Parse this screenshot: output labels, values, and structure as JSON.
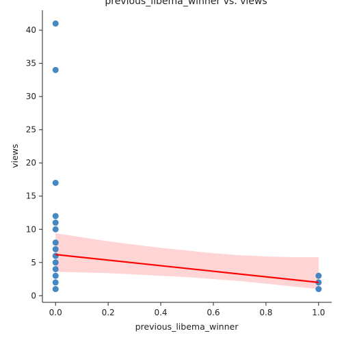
{
  "chart_data": {
    "type": "scatter",
    "title": "previous_libema_winner vs. views",
    "xlabel": "previous_libema_winner",
    "ylabel": "views",
    "xlim": [
      -0.05,
      1.05
    ],
    "ylim": [
      -1,
      43
    ],
    "x_ticks": [
      0.0,
      0.2,
      0.4,
      0.6,
      0.8,
      1.0
    ],
    "x_tick_labels": [
      "0.0",
      "0.2",
      "0.4",
      "0.6",
      "0.8",
      "1.0"
    ],
    "y_ticks": [
      0,
      5,
      10,
      15,
      20,
      25,
      30,
      35,
      40
    ],
    "y_tick_labels": [
      "0",
      "5",
      "10",
      "15",
      "20",
      "25",
      "30",
      "35",
      "40"
    ],
    "grid": false,
    "points": [
      {
        "x": 0,
        "y": 41
      },
      {
        "x": 0,
        "y": 34
      },
      {
        "x": 0,
        "y": 17
      },
      {
        "x": 0,
        "y": 12
      },
      {
        "x": 0,
        "y": 11
      },
      {
        "x": 0,
        "y": 10
      },
      {
        "x": 0,
        "y": 8
      },
      {
        "x": 0,
        "y": 7
      },
      {
        "x": 0,
        "y": 6
      },
      {
        "x": 0,
        "y": 5
      },
      {
        "x": 0,
        "y": 4
      },
      {
        "x": 0,
        "y": 3
      },
      {
        "x": 0,
        "y": 2
      },
      {
        "x": 0,
        "y": 1
      },
      {
        "x": 1,
        "y": 3
      },
      {
        "x": 1,
        "y": 2
      },
      {
        "x": 1,
        "y": 1
      }
    ],
    "regression": {
      "x": [
        0,
        1
      ],
      "y": [
        6.2,
        2.0
      ]
    },
    "confidence_band": {
      "x": [
        0,
        0.1,
        0.2,
        0.3,
        0.4,
        0.5,
        0.6,
        0.7,
        0.8,
        0.9,
        1.0
      ],
      "lower": [
        3.6,
        3.5,
        3.4,
        3.2,
        3.0,
        2.8,
        2.5,
        2.2,
        1.8,
        1.4,
        1.0
      ],
      "upper": [
        9.4,
        8.8,
        8.2,
        7.7,
        7.2,
        6.8,
        6.4,
        6.1,
        5.9,
        5.8,
        5.8
      ]
    },
    "colors": {
      "points": "#3b82c0",
      "regression_line": "#ff0000",
      "confidence_band": "#ffcccc"
    }
  }
}
